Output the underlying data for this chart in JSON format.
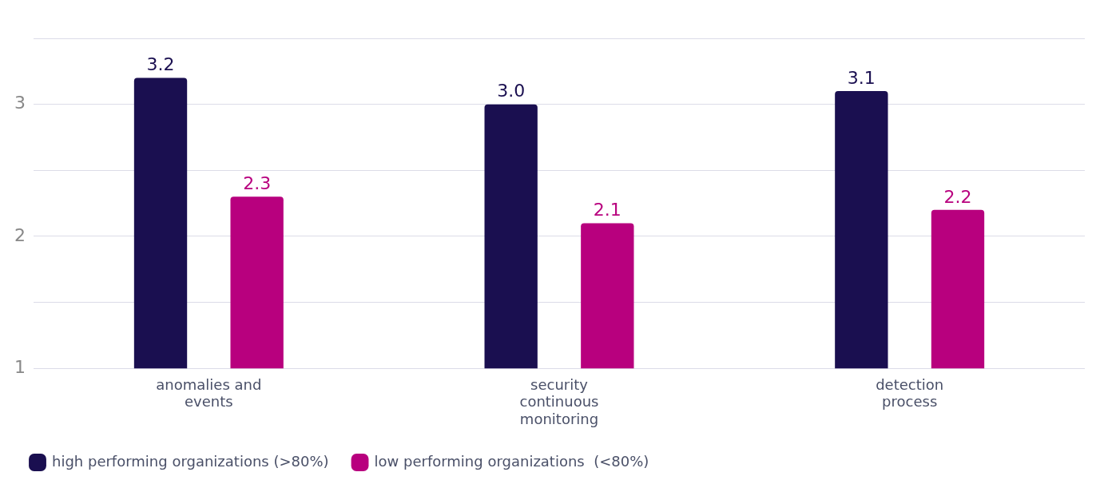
{
  "chart_data": {
    "type": "bar",
    "categories": [
      "anomalies and events",
      "security continuous monitoring",
      "detection process"
    ],
    "series": [
      {
        "name": "high performing organizations (>80%)",
        "color": "#1a0f50",
        "values": [
          3.2,
          3.0,
          3.1
        ],
        "value_labels": [
          "3.2",
          "3.0",
          "3.1"
        ]
      },
      {
        "name": "low performing organizations  (<80%)",
        "color": "#b8007e",
        "values": [
          2.3,
          2.1,
          2.2
        ],
        "value_labels": [
          "2.3",
          "2.1",
          "2.2"
        ]
      }
    ],
    "ylim": [
      1,
      3.5
    ],
    "yticks": [
      1,
      {
        "value": 1.5,
        "label": null
      },
      2,
      {
        "value": 2.5,
        "label": null
      },
      3,
      {
        "value": 3.5,
        "label": null
      }
    ],
    "grid": "y",
    "legend": "bottom left"
  }
}
